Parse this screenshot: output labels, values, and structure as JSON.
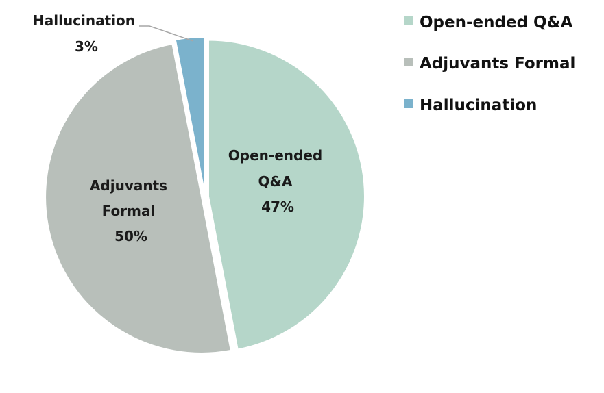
{
  "chart_data": {
    "type": "pie",
    "title": "",
    "slices": [
      {
        "label": "Open-ended Q&A",
        "percent": 47,
        "value_label": "47%",
        "color": "#b5d6c9"
      },
      {
        "label": "Adjuvants Formal",
        "percent": 50,
        "value_label": "50%",
        "color": "#b8bfba"
      },
      {
        "label": "Hallucination",
        "percent": 3,
        "value_label": "3%",
        "color": "#7bb2cc"
      }
    ],
    "data_labels": {
      "open_ended": [
        "Open-ended",
        "Q&A",
        "47%"
      ],
      "adjuvants": [
        "Adjuvants",
        "Formal",
        "50%"
      ],
      "hallucination": [
        "Hallucination",
        "3%"
      ]
    },
    "legend": {
      "position": "top-right",
      "entries": [
        "Open-ended Q&A",
        "Adjuvants Formal",
        "Hallucination"
      ]
    },
    "exploded": true,
    "start": "12 o'clock",
    "direction": "clockwise"
  }
}
